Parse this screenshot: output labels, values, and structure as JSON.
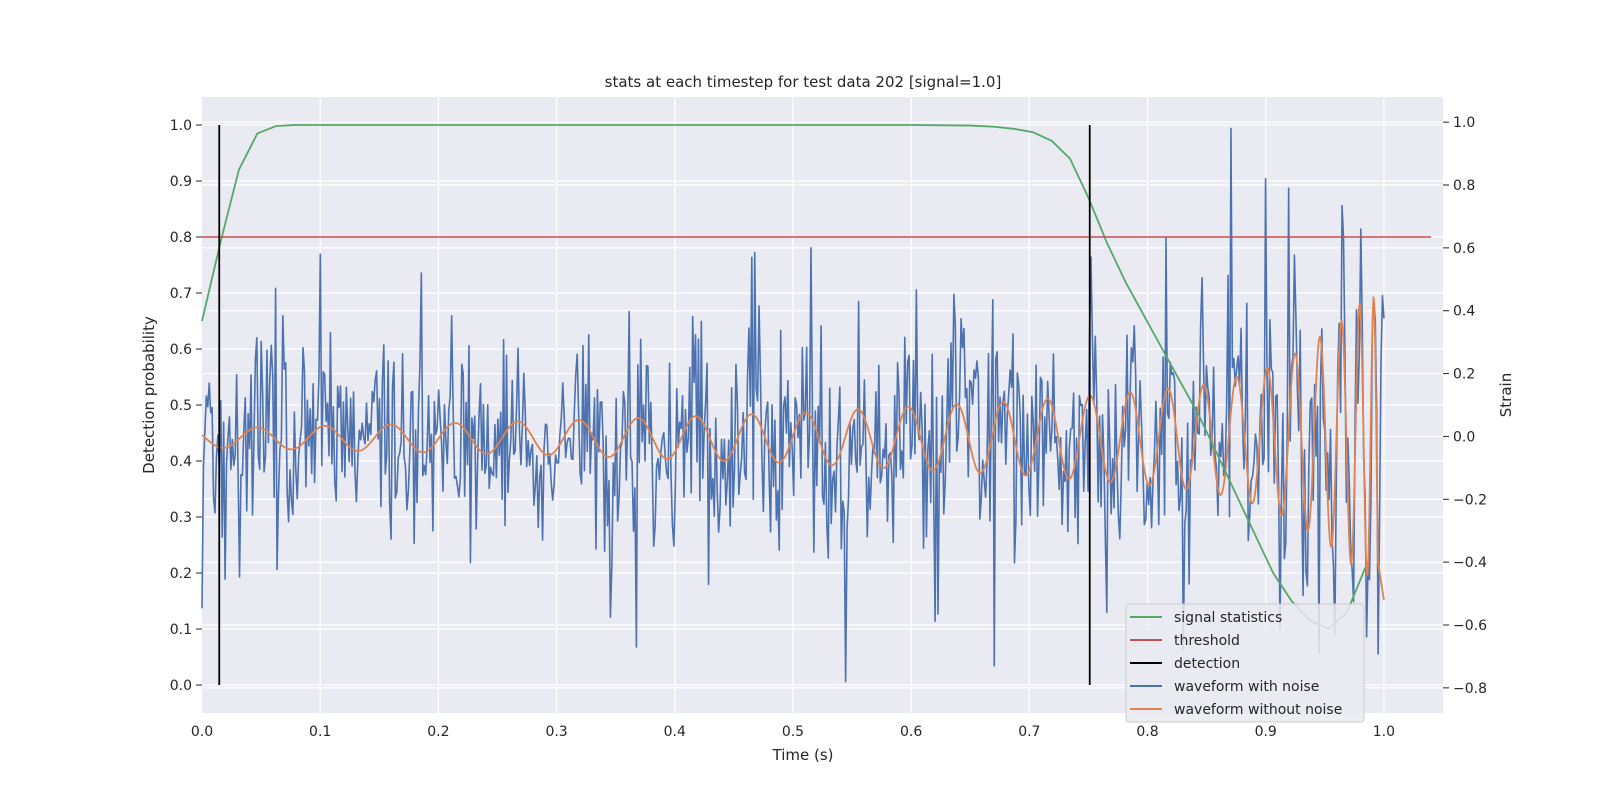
{
  "chart_data": {
    "type": "line",
    "title": "stats at each timestep for test data 202 [signal=1.0]",
    "xlabel": "Time (s)",
    "ylabel": "Detection probability",
    "ylabel_right": "Strain",
    "xlim": [
      0.0,
      1.05
    ],
    "ylim": [
      -0.05,
      1.05
    ],
    "ylim_right": [
      -0.88,
      1.08
    ],
    "xticks": [
      "0.0",
      "0.1",
      "0.2",
      "0.3",
      "0.4",
      "0.5",
      "0.6",
      "0.7",
      "0.8",
      "0.9",
      "1.0"
    ],
    "yticks": [
      "0.0",
      "0.1",
      "0.2",
      "0.3",
      "0.4",
      "0.5",
      "0.6",
      "0.7",
      "0.8",
      "0.9",
      "1.0"
    ],
    "yticks_right": [
      "−0.8",
      "−0.6",
      "−0.4",
      "−0.2",
      "0.0",
      "0.2",
      "0.4",
      "0.6",
      "0.8",
      "1.0"
    ],
    "grid": true,
    "legend_position": "lower-right",
    "colors": {
      "background": "#eaeaf2",
      "signal": "#55a868",
      "threshold": "#c44e52",
      "detection": "#000000",
      "noisy": "#4c72b0",
      "clean": "#dd8452"
    },
    "signal_statistics": {
      "name": "signal statistics",
      "x": [
        0.0,
        0.0156,
        0.0312,
        0.0469,
        0.0625,
        0.0781,
        0.1,
        0.2,
        0.3,
        0.4,
        0.5,
        0.6,
        0.65,
        0.67,
        0.6875,
        0.7031,
        0.7188,
        0.7344,
        0.75,
        0.7656,
        0.7813,
        0.7969,
        0.8125,
        0.8281,
        0.8438,
        0.8594,
        0.875,
        0.8906,
        0.9063,
        0.9219,
        0.9375,
        0.9531,
        0.9688,
        0.9844
      ],
      "y": [
        0.65,
        0.79,
        0.92,
        0.985,
        0.998,
        1.0,
        1.0,
        1.0,
        1.0,
        1.0,
        1.0,
        1.0,
        0.999,
        0.997,
        0.993,
        0.987,
        0.972,
        0.94,
        0.87,
        0.79,
        0.72,
        0.66,
        0.6,
        0.54,
        0.48,
        0.41,
        0.34,
        0.27,
        0.2,
        0.15,
        0.115,
        0.1,
        0.13,
        0.21
      ]
    },
    "threshold": {
      "name": "threshold",
      "y": 0.8,
      "x": [
        0.0,
        1.04
      ]
    },
    "detection": {
      "name": "detection",
      "x": [
        0.0146,
        0.7511
      ],
      "y": [
        0.0,
        1.0
      ]
    },
    "waveform_with_noise": {
      "name": "waveform with noise",
      "n_points": 820,
      "x_range": [
        0.0,
        1.0
      ],
      "noise_std": 0.17,
      "peaks": [
        [
          0.1,
          0.58
        ],
        [
          0.185,
          0.52
        ],
        [
          0.465,
          0.57
        ],
        [
          0.515,
          0.6
        ],
        [
          0.87,
          0.98
        ],
        [
          0.9,
          0.82
        ],
        [
          0.92,
          0.79
        ],
        [
          0.98,
          0.66
        ]
      ],
      "troughs": [
        [
          0.368,
          -0.67
        ],
        [
          0.544,
          -0.78
        ],
        [
          0.67,
          -0.73
        ],
        [
          0.945,
          -0.69
        ]
      ]
    },
    "waveform_without_noise": {
      "name": "waveform without noise",
      "x_range": [
        0.0,
        1.0
      ],
      "chirp_t_c": 1.0,
      "chirp_freq_start": 17,
      "envelope_t": [
        0.0,
        0.3,
        0.5,
        0.6,
        0.7,
        0.8,
        0.85,
        0.9,
        0.93,
        0.96,
        0.98,
        0.99,
        1.0
      ],
      "envelope_a": [
        0.03,
        0.055,
        0.08,
        0.1,
        0.12,
        0.15,
        0.17,
        0.22,
        0.28,
        0.36,
        0.43,
        0.45,
        0.45
      ],
      "end_points": [
        [
          0.995,
          -0.4
        ],
        [
          1.0,
          -0.52
        ]
      ]
    }
  }
}
